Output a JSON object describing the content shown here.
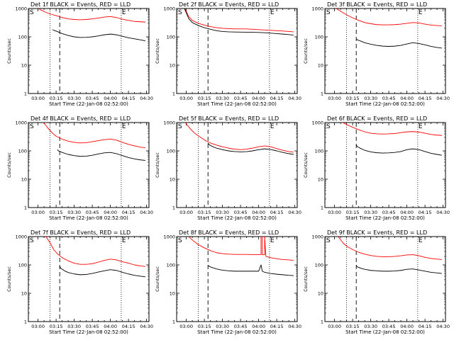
{
  "figure": {
    "xlabel": "Start Time (22-Jan-08 02:52:00)",
    "ylabel": "Counts/sec",
    "x_tick_labels": [
      "03:00",
      "03:15",
      "03:30",
      "03:45",
      "04:00",
      "04:15",
      "04:30"
    ],
    "y_tick_labels": [
      "1",
      "10",
      "100",
      "1000"
    ],
    "marker_s": "S",
    "marker_e": "E",
    "colors": {
      "events": "#000000",
      "lld": "#ff0000",
      "axes": "#000000"
    }
  },
  "chart_data": [
    {
      "type": "line",
      "title": "Det 1f BLACK = Events, RED = LLD",
      "yscale": "log",
      "xlim": [
        "02:52",
        "04:32"
      ],
      "ylim": [
        1,
        1000
      ],
      "vlines": {
        "dotted": [
          "03:10",
          "04:09"
        ],
        "dashed": "03:18"
      },
      "series": [
        {
          "color": "#ff0000",
          "x": [
            "02:58",
            "03:02",
            "03:06",
            "03:10",
            "03:15",
            "03:20",
            "03:25",
            "03:30",
            "03:35",
            "03:40",
            "03:45",
            "03:50",
            "03:55",
            "04:00",
            "04:05",
            "04:10",
            "04:15",
            "04:20",
            "04:25",
            "04:29"
          ],
          "y": [
            1200,
            900,
            750,
            640,
            560,
            480,
            430,
            410,
            400,
            410,
            430,
            460,
            500,
            520,
            480,
            420,
            380,
            350,
            340,
            330
          ]
        },
        {
          "color": "#000000",
          "x": [
            "03:12",
            "03:13",
            "03:15",
            "03:20",
            "03:25",
            "03:30",
            "03:35",
            "03:40",
            "03:45",
            "03:50",
            "03:55",
            "04:00",
            "04:05",
            "04:10",
            "04:15",
            "04:20",
            "04:25",
            "04:29"
          ],
          "y": [
            180,
            170,
            160,
            130,
            112,
            100,
            95,
            96,
            100,
            108,
            118,
            125,
            118,
            105,
            93,
            85,
            78,
            72
          ]
        }
      ]
    },
    {
      "type": "line",
      "title": "Det 2f BLACK = Events, RED = LLD",
      "yscale": "log",
      "xlim": [
        "02:52",
        "04:32"
      ],
      "ylim": [
        1,
        1000
      ],
      "vlines": {
        "dotted": [
          "03:10",
          "04:09"
        ],
        "dashed": "03:18"
      },
      "series": [
        {
          "color": "#ff0000",
          "x": [
            "02:58",
            "03:00",
            "03:02",
            "03:05",
            "03:10",
            "03:15",
            "03:20",
            "03:25",
            "03:30",
            "03:35",
            "03:40",
            "03:45",
            "03:50",
            "03:55",
            "04:00",
            "04:05",
            "04:10",
            "04:15",
            "04:20",
            "04:25",
            "04:29"
          ],
          "y": [
            1200,
            800,
            520,
            380,
            300,
            260,
            230,
            210,
            200,
            195,
            190,
            190,
            190,
            185,
            180,
            175,
            170,
            165,
            160,
            155,
            150
          ]
        },
        {
          "color": "#000000",
          "x": [
            "02:58",
            "03:00",
            "03:02",
            "03:05",
            "03:10",
            "03:15",
            "03:20",
            "03:25",
            "03:30",
            "03:35",
            "03:40",
            "03:45",
            "03:50",
            "03:55",
            "04:00",
            "04:05",
            "04:10",
            "04:15",
            "04:20",
            "04:25",
            "04:29"
          ],
          "y": [
            1100,
            700,
            440,
            320,
            250,
            210,
            185,
            165,
            155,
            150,
            148,
            147,
            146,
            145,
            143,
            140,
            135,
            130,
            125,
            120,
            115
          ]
        }
      ]
    },
    {
      "type": "line",
      "title": "Det 3f BLACK = Events, RED = LLD",
      "yscale": "log",
      "xlim": [
        "02:52",
        "04:32"
      ],
      "ylim": [
        1,
        1000
      ],
      "vlines": {
        "dotted": [
          "03:10",
          "04:09"
        ],
        "dashed": "03:18"
      },
      "series": [
        {
          "color": "#ff0000",
          "x": [
            "03:00",
            "03:05",
            "03:10",
            "03:15",
            "03:20",
            "03:25",
            "03:30",
            "03:35",
            "03:40",
            "03:45",
            "03:50",
            "03:55",
            "04:00",
            "04:05",
            "04:10",
            "04:15",
            "04:20",
            "04:25",
            "04:29"
          ],
          "y": [
            1100,
            800,
            600,
            470,
            380,
            320,
            290,
            270,
            265,
            265,
            270,
            280,
            300,
            320,
            310,
            280,
            260,
            250,
            245
          ]
        },
        {
          "color": "#000000",
          "x": [
            "03:18",
            "03:19",
            "03:22",
            "03:25",
            "03:30",
            "03:35",
            "03:40",
            "03:45",
            "03:50",
            "03:55",
            "04:00",
            "04:05",
            "04:10",
            "04:15",
            "04:20",
            "04:25",
            "04:29"
          ],
          "y": [
            85,
            78,
            70,
            62,
            55,
            50,
            47,
            46,
            47,
            50,
            56,
            62,
            58,
            52,
            46,
            42,
            40
          ]
        }
      ]
    },
    {
      "type": "line",
      "title": "Det 4f BLACK = Events, RED = LLD",
      "yscale": "log",
      "xlim": [
        "02:52",
        "04:32"
      ],
      "ylim": [
        1,
        1000
      ],
      "vlines": {
        "dotted": [
          "03:10",
          "04:09"
        ],
        "dashed": "03:18"
      },
      "series": [
        {
          "color": "#ff0000",
          "x": [
            "03:04",
            "03:08",
            "03:12",
            "03:15",
            "03:20",
            "03:25",
            "03:30",
            "03:35",
            "03:40",
            "03:45",
            "03:50",
            "03:55",
            "04:00",
            "04:05",
            "04:10",
            "04:15",
            "04:20",
            "04:25",
            "04:29"
          ],
          "y": [
            1100,
            650,
            420,
            330,
            260,
            220,
            200,
            190,
            195,
            210,
            230,
            250,
            260,
            240,
            200,
            170,
            150,
            135,
            130
          ]
        },
        {
          "color": "#000000",
          "x": [
            "03:16",
            "03:17",
            "03:20",
            "03:25",
            "03:30",
            "03:35",
            "03:40",
            "03:45",
            "03:50",
            "03:55",
            "04:00",
            "04:05",
            "04:10",
            "04:15",
            "04:20",
            "04:25",
            "04:29"
          ],
          "y": [
            110,
            100,
            88,
            75,
            68,
            64,
            65,
            70,
            78,
            85,
            88,
            80,
            68,
            58,
            52,
            48,
            46
          ]
        }
      ]
    },
    {
      "type": "line",
      "title": "Det 5f BLACK = Events, RED = LLD",
      "yscale": "log",
      "xlim": [
        "02:52",
        "04:32"
      ],
      "ylim": [
        1,
        1000
      ],
      "vlines": {
        "dotted": [
          "03:10",
          "04:09"
        ],
        "dashed": "03:18"
      },
      "series": [
        {
          "color": "#ff0000",
          "x": [
            "02:58",
            "03:01",
            "03:04",
            "03:07",
            "03:10",
            "03:13",
            "03:16",
            "03:20",
            "03:25",
            "03:30",
            "03:35",
            "03:40",
            "03:45",
            "03:50",
            "03:55",
            "04:00",
            "04:05",
            "04:10",
            "04:15",
            "04:20",
            "04:25",
            "04:29"
          ],
          "y": [
            1200,
            800,
            560,
            420,
            340,
            280,
            230,
            190,
            160,
            140,
            125,
            115,
            110,
            115,
            125,
            140,
            150,
            140,
            120,
            105,
            95,
            90
          ]
        },
        {
          "color": "#000000",
          "x": [
            "03:18",
            "03:19",
            "03:22",
            "03:25",
            "03:30",
            "03:35",
            "03:40",
            "03:45",
            "03:50",
            "03:55",
            "04:00",
            "04:05",
            "04:10",
            "04:15",
            "04:20",
            "04:25",
            "04:29"
          ],
          "y": [
            190,
            165,
            140,
            125,
            110,
            100,
            95,
            92,
            94,
            100,
            110,
            118,
            112,
            100,
            88,
            80,
            75
          ]
        }
      ]
    },
    {
      "type": "line",
      "title": "Det 6f BLACK = Events, RED = LLD",
      "yscale": "log",
      "xlim": [
        "02:52",
        "04:32"
      ],
      "ylim": [
        1,
        1000
      ],
      "vlines": {
        "dotted": [
          "03:10",
          "04:09"
        ],
        "dashed": "03:18"
      },
      "series": [
        {
          "color": "#ff0000",
          "x": [
            "03:05",
            "03:10",
            "03:15",
            "03:20",
            "03:25",
            "03:30",
            "03:35",
            "03:40",
            "03:45",
            "03:50",
            "03:55",
            "04:00",
            "04:05",
            "04:10",
            "04:15",
            "04:20",
            "04:25",
            "04:29"
          ],
          "y": [
            1100,
            850,
            680,
            560,
            470,
            420,
            400,
            395,
            400,
            410,
            440,
            470,
            480,
            460,
            420,
            380,
            360,
            350
          ]
        },
        {
          "color": "#000000",
          "x": [
            "03:18",
            "03:19",
            "03:22",
            "03:25",
            "03:30",
            "03:35",
            "03:40",
            "03:45",
            "03:50",
            "03:55",
            "04:00",
            "04:05",
            "04:10",
            "04:15",
            "04:20",
            "04:25",
            "04:29"
          ],
          "y": [
            160,
            140,
            120,
            105,
            92,
            86,
            84,
            85,
            88,
            95,
            110,
            118,
            110,
            95,
            82,
            75,
            70
          ]
        }
      ]
    },
    {
      "type": "line",
      "title": "Det 7f BLACK = Events, RED = LLD",
      "yscale": "log",
      "xlim": [
        "02:52",
        "04:32"
      ],
      "ylim": [
        1,
        1000
      ],
      "vlines": {
        "dotted": [
          "03:10",
          "04:09"
        ],
        "dashed": "03:18"
      },
      "series": [
        {
          "color": "#ff0000",
          "x": [
            "03:06",
            "03:10",
            "03:13",
            "03:16",
            "03:20",
            "03:25",
            "03:30",
            "03:35",
            "03:40",
            "03:45",
            "03:50",
            "03:55",
            "04:00",
            "04:05",
            "04:10",
            "04:15",
            "04:20",
            "04:25",
            "04:29"
          ],
          "y": [
            1100,
            600,
            350,
            250,
            180,
            140,
            115,
            105,
            105,
            110,
            125,
            145,
            160,
            150,
            130,
            115,
            100,
            92,
            88
          ]
        },
        {
          "color": "#000000",
          "x": [
            "03:18",
            "03:19",
            "03:22",
            "03:25",
            "03:30",
            "03:35",
            "03:40",
            "03:45",
            "03:50",
            "03:55",
            "04:00",
            "04:05",
            "04:10",
            "04:15",
            "04:20",
            "04:25",
            "04:29"
          ],
          "y": [
            90,
            75,
            62,
            54,
            48,
            45,
            46,
            50,
            56,
            62,
            68,
            64,
            55,
            48,
            43,
            40,
            38
          ]
        }
      ]
    },
    {
      "type": "line",
      "title": "Det 8f BLACK = Events, RED = LLD",
      "yscale": "log",
      "xlim": [
        "02:52",
        "04:32"
      ],
      "ylim": [
        1,
        1000
      ],
      "vlines": {
        "dotted": [
          "03:10",
          "04:09"
        ],
        "dashed": "03:18"
      },
      "series": [
        {
          "color": "#ff0000",
          "x": [
            "03:02",
            "03:06",
            "03:10",
            "03:15",
            "03:20",
            "03:25",
            "03:30",
            "03:35",
            "03:40",
            "03:45",
            "03:50",
            "03:55",
            "04:00",
            "04:02",
            "04:02",
            "04:03",
            "04:03",
            "04:05",
            "04:05",
            "04:06",
            "04:10",
            "04:15",
            "04:20",
            "04:25",
            "04:29"
          ],
          "y": [
            1000,
            700,
            520,
            400,
            320,
            270,
            250,
            240,
            235,
            235,
            235,
            230,
            230,
            230,
            1000,
            1000,
            230,
            230,
            1000,
            200,
            180,
            165,
            155,
            150,
            145
          ]
        },
        {
          "color": "#000000",
          "x": [
            "03:18",
            "03:20",
            "03:25",
            "03:30",
            "03:35",
            "03:40",
            "03:45",
            "03:50",
            "03:55",
            "04:00",
            "04:02",
            "04:03",
            "04:05",
            "04:10",
            "04:15",
            "04:20",
            "04:25",
            "04:29"
          ],
          "y": [
            95,
            85,
            72,
            65,
            62,
            60,
            60,
            60,
            60,
            60,
            100,
            60,
            55,
            50,
            47,
            45,
            43,
            42
          ]
        }
      ]
    },
    {
      "type": "line",
      "title": "Det 9f BLACK = Events, RED = LLD",
      "yscale": "log",
      "xlim": [
        "02:52",
        "04:32"
      ],
      "ylim": [
        1,
        1000
      ],
      "vlines": {
        "dotted": [
          "03:10",
          "04:09"
        ],
        "dashed": "03:18"
      },
      "series": [
        {
          "color": "#ff0000",
          "x": [
            "03:03",
            "03:07",
            "03:10",
            "03:15",
            "03:20",
            "03:25",
            "03:30",
            "03:35",
            "03:40",
            "03:45",
            "03:50",
            "03:55",
            "04:00",
            "04:05",
            "04:10",
            "04:15",
            "04:20",
            "04:25",
            "04:29"
          ],
          "y": [
            1000,
            600,
            460,
            350,
            280,
            240,
            215,
            200,
            195,
            195,
            200,
            210,
            225,
            230,
            210,
            185,
            170,
            160,
            155
          ]
        },
        {
          "color": "#000000",
          "x": [
            "03:18",
            "03:19",
            "03:22",
            "03:25",
            "03:30",
            "03:35",
            "03:40",
            "03:45",
            "03:50",
            "03:55",
            "04:00",
            "04:05",
            "04:10",
            "04:15",
            "04:20",
            "04:25",
            "04:29"
          ],
          "y": [
            95,
            85,
            76,
            70,
            64,
            62,
            60,
            60,
            61,
            64,
            70,
            72,
            66,
            60,
            55,
            52,
            50
          ]
        }
      ]
    }
  ]
}
